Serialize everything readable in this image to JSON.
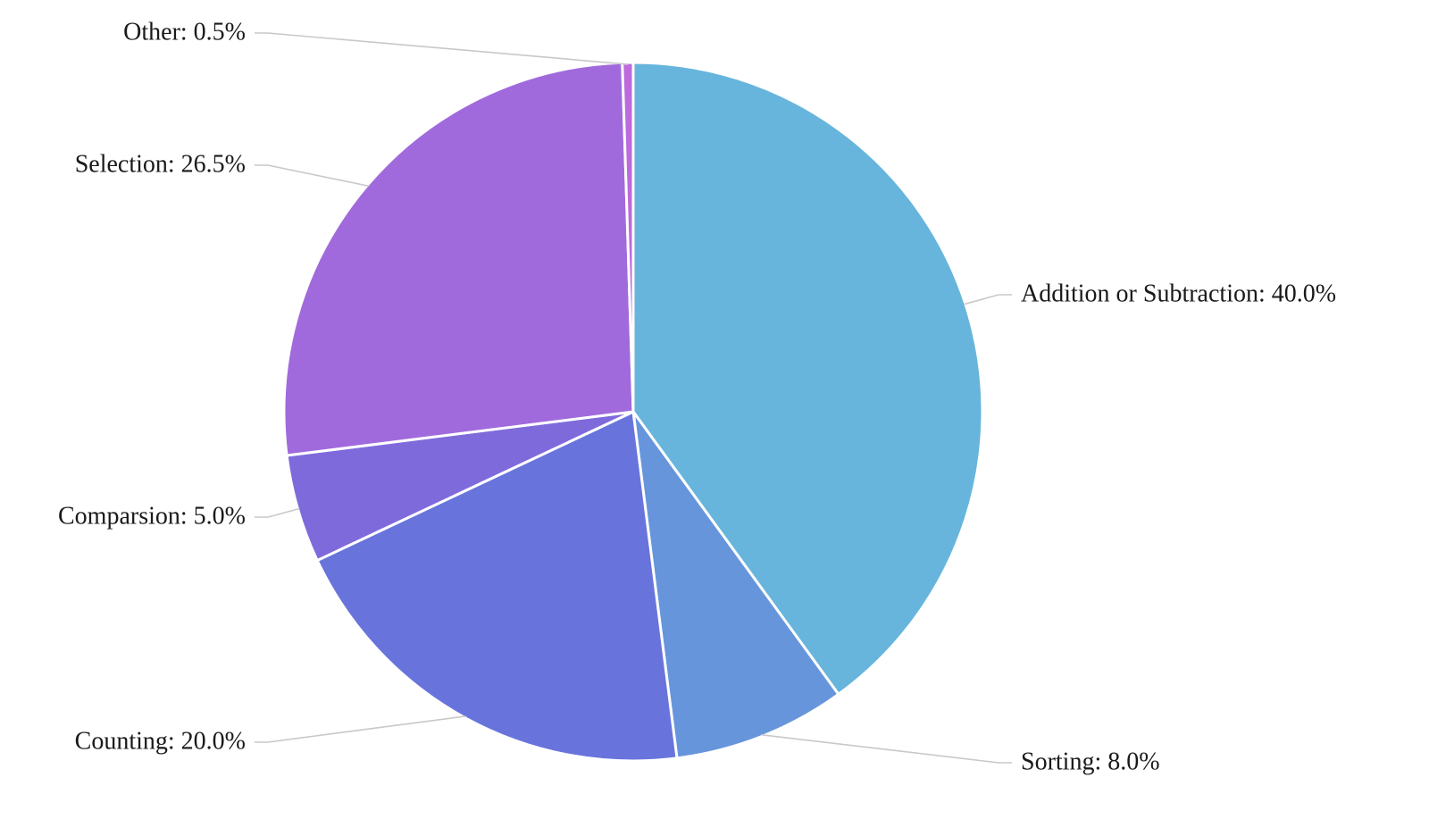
{
  "chart_data": {
    "type": "pie",
    "title": "",
    "slices": [
      {
        "label": "Addition or Subtraction",
        "value": 40.0,
        "display": "Addition or Subtraction: 40.0%",
        "color": "#67b5dc"
      },
      {
        "label": "Sorting",
        "value": 8.0,
        "display": "Sorting: 8.0%",
        "color": "#6795dc"
      },
      {
        "label": "Counting",
        "value": 20.0,
        "display": "Counting: 20.0%",
        "color": "#6874dc"
      },
      {
        "label": "Comparsion",
        "value": 5.0,
        "display": "Comparsion: 5.0%",
        "color": "#7f6adc"
      },
      {
        "label": "Selection",
        "value": 26.5,
        "display": "Selection: 26.5%",
        "color": "#a06adc"
      },
      {
        "label": "Other",
        "value": 0.5,
        "display": "Other: 0.5%",
        "color": "#bc6adc"
      }
    ]
  }
}
